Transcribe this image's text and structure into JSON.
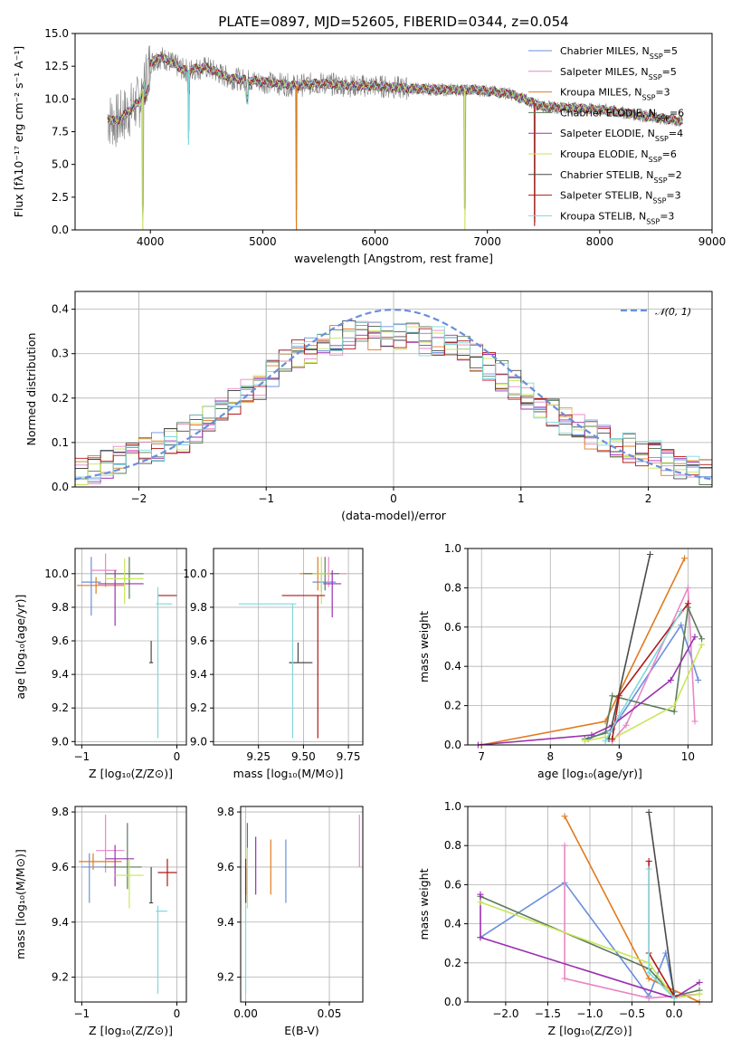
{
  "figure_title": "PLATE=0897, MJD=52605, FIBERID=0344, z=0.054",
  "colors": [
    "#6a8fdc",
    "#e887c4",
    "#e07b1e",
    "#5a7a5a",
    "#9b30b0",
    "#c8e65a",
    "#4a4a4a",
    "#b01818",
    "#7fd8dc"
  ],
  "chart_data": [
    {
      "id": "spectrum",
      "type": "line",
      "title": "PLATE=0897, MJD=52605, FIBERID=0344, z=0.054",
      "xlabel": "wavelength [Angstrom, rest frame]",
      "ylabel": "Flux [fλ10⁻¹⁷ erg cm⁻² s⁻¹ A⁻¹]",
      "xlim": [
        3330,
        9000
      ],
      "ylim": [
        0,
        15
      ],
      "xticks": [
        4000,
        5000,
        6000,
        7000,
        8000,
        9000
      ],
      "yticks": [
        0.0,
        2.5,
        5.0,
        7.5,
        10.0,
        12.5,
        15.0
      ],
      "grid": false,
      "legend_position": "top-right",
      "legend": [
        {
          "label": "Chabrier MILES, N_SSP=5"
        },
        {
          "label": "Salpeter MILES, N_SSP=5"
        },
        {
          "label": "Kroupa MILES, N_SSP=3"
        },
        {
          "label": "Chabrier ELODIE, N_SSP=6"
        },
        {
          "label": "Salpeter ELODIE, N_SSP=4"
        },
        {
          "label": "Kroupa ELODIE, N_SSP=6"
        },
        {
          "label": "Chabrier STELIB, N_SSP=2"
        },
        {
          "label": "Salpeter STELIB, N_SSP=3"
        },
        {
          "label": "Kroupa STELIB, N_SSP=3"
        }
      ],
      "data_envelope": {
        "wavelength": [
          3620,
          3700,
          3800,
          3900,
          4000,
          4100,
          4300,
          4500,
          4700,
          4900,
          5100,
          5300,
          5500,
          5800,
          6000,
          6300,
          6600,
          6900,
          7200,
          7500,
          7800,
          8100,
          8400,
          8740
        ],
        "flux": [
          8.5,
          8.3,
          9.0,
          9.8,
          12.8,
          13.2,
          12.2,
          12.4,
          11.6,
          11.4,
          11.2,
          11.0,
          11.2,
          11.0,
          11.0,
          10.8,
          10.7,
          10.7,
          10.4,
          9.4,
          9.3,
          9.1,
          8.7,
          8.3
        ]
      },
      "absorption_features": [
        {
          "wavelength": 3933,
          "flux_min": 0
        },
        {
          "wavelength": 4340,
          "flux_min": 6.5
        },
        {
          "wavelength": 5300,
          "flux_min": 0
        },
        {
          "wavelength": 6800,
          "flux_min": 0
        },
        {
          "wavelength": 7420,
          "flux_min": 0.3
        }
      ]
    },
    {
      "id": "residuals",
      "type": "step",
      "xlabel": "(data-model)/error",
      "ylabel": "Normed distribution",
      "xlim": [
        -2.5,
        2.5
      ],
      "ylim": [
        0,
        0.44
      ],
      "xticks": [
        -2,
        -1,
        0,
        1,
        2
      ],
      "yticks": [
        0.0,
        0.1,
        0.2,
        0.3,
        0.4
      ],
      "grid": true,
      "legend_position": "top-right",
      "legend": [
        {
          "label": "𝒩(0, 1)"
        }
      ],
      "bin_width": 0.1,
      "n_bins": 50,
      "mean_histogram": [
        0.03,
        0.04,
        0.05,
        0.06,
        0.07,
        0.08,
        0.09,
        0.1,
        0.11,
        0.13,
        0.15,
        0.17,
        0.19,
        0.21,
        0.23,
        0.26,
        0.28,
        0.3,
        0.31,
        0.33,
        0.33,
        0.34,
        0.34,
        0.34,
        0.34,
        0.34,
        0.34,
        0.33,
        0.33,
        0.32,
        0.31,
        0.29,
        0.27,
        0.25,
        0.23,
        0.21,
        0.19,
        0.17,
        0.15,
        0.14,
        0.12,
        0.11,
        0.1,
        0.09,
        0.08,
        0.07,
        0.06,
        0.05,
        0.04,
        0.035
      ]
    },
    {
      "id": "age-vs-Z",
      "type": "errorbar",
      "xlabel": "Z [log₁₀(Z/Z⊙)]",
      "ylabel": "age  [log₁₀(age/yr)]",
      "xlim": [
        -1.07,
        0.1
      ],
      "ylim": [
        8.98,
        10.15
      ],
      "xticks": [
        -1,
        0
      ],
      "yticks": [
        9.0,
        9.2,
        9.4,
        9.6,
        9.8,
        10.0
      ],
      "grid": true,
      "points": [
        {
          "x": -0.9,
          "y": 9.95,
          "xerr": [
            0.1,
            0.1
          ],
          "yerr": [
            0.2,
            0.15
          ]
        },
        {
          "x": -0.75,
          "y": 10.02,
          "xerr": [
            0.15,
            0.12
          ],
          "yerr": [
            0.1,
            0.1
          ]
        },
        {
          "x": -0.85,
          "y": 9.93,
          "xerr": [
            0.2,
            0.3
          ],
          "yerr": [
            0.05,
            0.05
          ]
        },
        {
          "x": -0.5,
          "y": 10.0,
          "xerr": [
            0.25,
            0.15
          ],
          "yerr": [
            0.15,
            0.1
          ]
        },
        {
          "x": -0.65,
          "y": 9.94,
          "xerr": [
            0.18,
            0.3
          ],
          "yerr": [
            0.25,
            0.08
          ]
        },
        {
          "x": -0.55,
          "y": 9.97,
          "xerr": [
            0.2,
            0.2
          ],
          "yerr": [
            0.15,
            0.12
          ]
        },
        {
          "x": -0.27,
          "y": 9.47,
          "xerr": [
            0.02,
            0.02
          ],
          "yerr": [
            0.0,
            0.13
          ]
        },
        {
          "x": -0.1,
          "y": 9.87,
          "xerr": [
            0.1,
            0.1
          ],
          "yerr": [
            0.0,
            0.0
          ]
        },
        {
          "x": -0.2,
          "y": 9.82,
          "xerr": [
            0.02,
            0.15
          ],
          "yerr": [
            0.8,
            0.1
          ]
        }
      ]
    },
    {
      "id": "age-vs-mass",
      "type": "errorbar",
      "xlabel": "mass [log₁₀(M/M⊙)]",
      "ylabel": "",
      "xlim": [
        9.0,
        9.83
      ],
      "ylim": [
        8.98,
        10.15
      ],
      "xticks": [
        9.25,
        9.5,
        9.75
      ],
      "yticks": [
        9.0,
        9.2,
        9.4,
        9.6,
        9.8,
        10.0
      ],
      "grid": true,
      "points": [
        {
          "x": 9.6,
          "y": 9.95,
          "xerr": [
            0.05,
            0.08
          ],
          "yerr": [
            0.06,
            0.05
          ]
        },
        {
          "x": 9.64,
          "y": 10.0,
          "xerr": [
            0.08,
            0.1
          ],
          "yerr": [
            0.08,
            0.1
          ]
        },
        {
          "x": 9.58,
          "y": 10.0,
          "xerr": [
            0.1,
            0.05
          ],
          "yerr": [
            0.1,
            0.1
          ]
        },
        {
          "x": 9.62,
          "y": 10.0,
          "xerr": [
            0.12,
            0.08
          ],
          "yerr": [
            0.1,
            0.1
          ]
        },
        {
          "x": 9.66,
          "y": 9.94,
          "xerr": [
            0.05,
            0.05
          ],
          "yerr": [
            0.2,
            0.08
          ]
        },
        {
          "x": 9.6,
          "y": 10.0,
          "xerr": [
            0.05,
            0.05
          ],
          "yerr": [
            0.18,
            0.1
          ]
        },
        {
          "x": 9.47,
          "y": 9.47,
          "xerr": [
            0.05,
            0.08
          ],
          "yerr": [
            0.0,
            0.12
          ]
        },
        {
          "x": 9.58,
          "y": 9.87,
          "xerr": [
            0.2,
            0.04
          ],
          "yerr": [
            0.85,
            0.0
          ]
        },
        {
          "x": 9.44,
          "y": 9.82,
          "xerr": [
            0.3,
            0.02
          ],
          "yerr": [
            0.8,
            0.0
          ]
        }
      ]
    },
    {
      "id": "weight-vs-age",
      "type": "line",
      "xlabel": "age  [log₁₀(age/yr)]",
      "ylabel": "mass weight",
      "xlim": [
        6.8,
        10.35
      ],
      "ylim": [
        0,
        1.0
      ],
      "xticks": [
        7,
        8,
        9,
        10
      ],
      "yticks": [
        0.0,
        0.2,
        0.4,
        0.6,
        0.8,
        1.0
      ],
      "grid": true,
      "series": [
        {
          "x": [
            8.55,
            8.9,
            9.9,
            10.15
          ],
          "y": [
            0.03,
            0.08,
            0.61,
            0.33
          ]
        },
        {
          "x": [
            8.9,
            9.1,
            10.0,
            10.1
          ],
          "y": [
            0.02,
            0.1,
            0.8,
            0.12
          ]
        },
        {
          "x": [
            7.0,
            8.8,
            9.95
          ],
          "y": [
            0.0,
            0.12,
            0.95
          ]
        },
        {
          "x": [
            8.5,
            8.8,
            8.9,
            9.8,
            10.0,
            10.2
          ],
          "y": [
            0.03,
            0.06,
            0.25,
            0.17,
            0.7,
            0.54
          ]
        },
        {
          "x": [
            6.95,
            8.6,
            8.9,
            9.75,
            10.1
          ],
          "y": [
            0.0,
            0.05,
            0.1,
            0.33,
            0.55
          ]
        },
        {
          "x": [
            8.5,
            8.8,
            8.9,
            9.8,
            10.2
          ],
          "y": [
            0.02,
            0.04,
            0.03,
            0.2,
            0.51
          ]
        },
        {
          "x": [
            8.85,
            9.45
          ],
          "y": [
            0.03,
            0.97
          ]
        },
        {
          "x": [
            8.9,
            9.0,
            10.0
          ],
          "y": [
            0.03,
            0.25,
            0.72
          ]
        },
        {
          "x": [
            8.8,
            9.0,
            9.9
          ],
          "y": [
            0.02,
            0.15,
            0.68
          ]
        }
      ]
    },
    {
      "id": "mass-vs-Z",
      "type": "errorbar",
      "xlabel": "Z [log₁₀(Z/Z⊙)]",
      "ylabel": "mass [log₁₀(M/M⊙)]",
      "xlim": [
        -1.07,
        0.1
      ],
      "ylim": [
        9.11,
        9.82
      ],
      "xticks": [
        -1,
        0
      ],
      "yticks": [
        9.2,
        9.4,
        9.6,
        9.8
      ],
      "grid": true,
      "points": [
        {
          "x": -0.92,
          "y": 9.6,
          "xerr": [
            0.08,
            0.15
          ],
          "yerr": [
            0.13,
            0.05
          ]
        },
        {
          "x": -0.75,
          "y": 9.66,
          "xerr": [
            0.1,
            0.2
          ],
          "yerr": [
            0.08,
            0.13
          ]
        },
        {
          "x": -0.88,
          "y": 9.62,
          "xerr": [
            0.15,
            0.3
          ],
          "yerr": [
            0.03,
            0.03
          ]
        },
        {
          "x": -0.52,
          "y": 9.6,
          "xerr": [
            0.25,
            0.15
          ],
          "yerr": [
            0.08,
            0.16
          ]
        },
        {
          "x": -0.65,
          "y": 9.63,
          "xerr": [
            0.1,
            0.2
          ],
          "yerr": [
            0.1,
            0.05
          ]
        },
        {
          "x": -0.5,
          "y": 9.57,
          "xerr": [
            0.15,
            0.15
          ],
          "yerr": [
            0.12,
            0.06
          ]
        },
        {
          "x": -0.27,
          "y": 9.47,
          "xerr": [
            0.02,
            0.02
          ],
          "yerr": [
            0.0,
            0.13
          ]
        },
        {
          "x": -0.1,
          "y": 9.58,
          "xerr": [
            0.1,
            0.1
          ],
          "yerr": [
            0.05,
            0.05
          ]
        },
        {
          "x": -0.2,
          "y": 9.44,
          "xerr": [
            0.02,
            0.1
          ],
          "yerr": [
            0.3,
            0.02
          ]
        }
      ]
    },
    {
      "id": "mass-vs-EBV",
      "type": "errorbar",
      "xlabel": "E(B-V)",
      "ylabel": "",
      "xlim": [
        -0.003,
        0.07
      ],
      "ylim": [
        9.11,
        9.82
      ],
      "xticks": [
        0.0,
        0.05
      ],
      "yticks": [
        9.2,
        9.4,
        9.6,
        9.8
      ],
      "grid": true,
      "points": [
        {
          "x": 0.024,
          "y": 9.6,
          "yerr": [
            0.13,
            0.1
          ]
        },
        {
          "x": 0.068,
          "y": 9.69,
          "yerr": [
            0.09,
            0.1
          ]
        },
        {
          "x": 0.015,
          "y": 9.6,
          "yerr": [
            0.1,
            0.1
          ]
        },
        {
          "x": 0.001,
          "y": 9.6,
          "yerr": [
            0.13,
            0.16
          ]
        },
        {
          "x": 0.006,
          "y": 9.6,
          "yerr": [
            0.1,
            0.11
          ]
        },
        {
          "x": 0.001,
          "y": 9.57,
          "yerr": [
            0.12,
            0.1
          ]
        },
        {
          "x": 0.0,
          "y": 9.47,
          "yerr": [
            0.0,
            0.13
          ]
        },
        {
          "x": 0.0,
          "y": 9.56,
          "yerr": [
            0.06,
            0.07
          ]
        },
        {
          "x": 0.0,
          "y": 9.44,
          "yerr": [
            0.3,
            0.02
          ]
        }
      ]
    },
    {
      "id": "weight-vs-Z",
      "type": "line",
      "xlabel": "Z [log₁₀(Z/Z⊙)]",
      "ylabel": "mass weight",
      "xlim": [
        -2.45,
        0.45
      ],
      "ylim": [
        0,
        1.0
      ],
      "xticks": [
        -2.0,
        -1.5,
        -1.0,
        -0.5,
        0.0
      ],
      "yticks": [
        0.0,
        0.2,
        0.4,
        0.6,
        0.8,
        1.0
      ],
      "grid": true,
      "series": [
        {
          "x": [
            -2.3,
            -1.3,
            -0.3,
            -0.1,
            0.0
          ],
          "y": [
            0.33,
            0.61,
            0.03,
            0.25,
            0.05
          ]
        },
        {
          "x": [
            -1.3,
            -1.3,
            -0.3,
            0.3
          ],
          "y": [
            0.8,
            0.12,
            0.02,
            0.04
          ]
        },
        {
          "x": [
            -1.3,
            -0.3,
            0.3
          ],
          "y": [
            0.95,
            0.12,
            0.0
          ]
        },
        {
          "x": [
            -2.3,
            -0.3,
            0.0,
            0.3
          ],
          "y": [
            0.54,
            0.17,
            0.03,
            0.06
          ]
        },
        {
          "x": [
            -2.3,
            -2.3,
            0.0,
            0.3
          ],
          "y": [
            0.55,
            0.33,
            0.02,
            0.1
          ]
        },
        {
          "x": [
            -2.3,
            -0.3,
            0.0,
            0.3
          ],
          "y": [
            0.51,
            0.2,
            0.02,
            0.04
          ]
        },
        {
          "x": [
            -0.3,
            0.0
          ],
          "y": [
            0.97,
            0.03
          ]
        },
        {
          "x": [
            -0.3,
            -0.3,
            0.0
          ],
          "y": [
            0.72,
            0.25,
            0.03
          ]
        },
        {
          "x": [
            -0.3,
            -0.3,
            0.0
          ],
          "y": [
            0.68,
            0.15,
            0.02
          ]
        }
      ]
    }
  ]
}
